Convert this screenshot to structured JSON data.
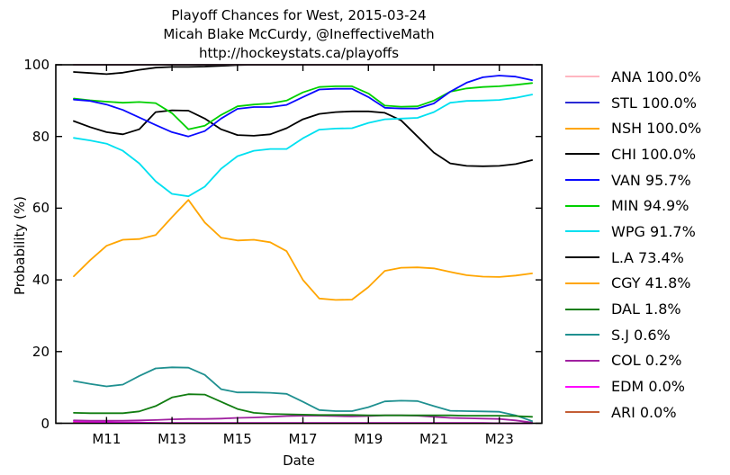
{
  "figure": {
    "title_line1": "Playoff Chances for West, 2015-03-24",
    "title_line2": "Micah Blake McCurdy, @IneffectiveMath",
    "title_line3": "http://hockeystats.ca/playoffs"
  },
  "chart_data": {
    "type": "line",
    "title": "Playoff Chances for West, 2015-03-24",
    "subtitle": "Micah Blake McCurdy, @IneffectiveMath",
    "url_line": "http://hockeystats.ca/playoffs",
    "xlabel": "Date",
    "ylabel": "Probability (%)",
    "xlim": [
      9.45,
      24.3
    ],
    "ylim": [
      0,
      100
    ],
    "grid": false,
    "legend_position": "right-outside",
    "x_ticks": [
      {
        "value": 11,
        "label": "M11"
      },
      {
        "value": 13,
        "label": "M13"
      },
      {
        "value": 15,
        "label": "M15"
      },
      {
        "value": 17,
        "label": "M17"
      },
      {
        "value": 19,
        "label": "M19"
      },
      {
        "value": 21,
        "label": "M21"
      },
      {
        "value": 23,
        "label": "M23"
      }
    ],
    "y_ticks": [
      {
        "value": 0,
        "label": "0"
      },
      {
        "value": 20,
        "label": "20"
      },
      {
        "value": 40,
        "label": "40"
      },
      {
        "value": 60,
        "label": "60"
      },
      {
        "value": 80,
        "label": "80"
      },
      {
        "value": 100,
        "label": "100"
      }
    ],
    "x": [
      10,
      10.5,
      11,
      11.5,
      12,
      12.5,
      13,
      13.5,
      14,
      14.5,
      15,
      15.5,
      16,
      16.5,
      17,
      17.5,
      18,
      18.5,
      19,
      19.5,
      20,
      20.5,
      21,
      21.5,
      22,
      22.5,
      23,
      23.5,
      24
    ],
    "series": [
      {
        "name": "ANA",
        "legend_label": "ANA 100.0%",
        "final": "100.0%",
        "color": "#ffb6c1",
        "values": [
          100,
          100,
          100,
          100,
          100,
          100,
          100,
          100,
          100,
          100,
          100,
          100,
          100,
          100,
          100,
          100,
          100,
          100,
          100,
          100,
          100,
          100,
          100,
          100,
          100,
          100,
          100,
          100,
          100
        ]
      },
      {
        "name": "STL",
        "legend_label": "STL 100.0%",
        "final": "100.0%",
        "color": "#2a2ad4",
        "values": [
          100,
          100,
          100,
          100,
          100,
          100,
          100,
          100,
          100,
          100,
          100,
          100,
          100,
          100,
          100,
          100,
          100,
          100,
          100,
          100,
          100,
          100,
          100,
          100,
          100,
          100,
          100,
          100,
          100
        ]
      },
      {
        "name": "NSH",
        "legend_label": "NSH 100.0%",
        "final": "100.0%",
        "color": "#ffa500",
        "values": [
          100,
          100,
          100,
          100,
          100,
          100,
          100,
          100,
          100,
          100,
          100,
          100,
          100,
          100,
          100,
          100,
          100,
          100,
          100,
          100,
          100,
          100,
          100,
          100,
          100,
          100,
          100,
          100,
          100
        ]
      },
      {
        "name": "CHI",
        "legend_label": "CHI 100.0%",
        "final": "100.0%",
        "color": "#000000",
        "values": [
          98,
          97.7,
          97.4,
          97.8,
          98.6,
          99.2,
          99.4,
          99.4,
          99.5,
          99.7,
          99.9,
          100,
          100,
          100,
          100,
          100,
          100,
          100,
          100,
          100,
          100,
          100,
          100,
          100,
          100,
          100,
          100,
          100,
          100
        ]
      },
      {
        "name": "VAN",
        "legend_label": "VAN 95.7%",
        "final": "95.7%",
        "color": "#0a0aff",
        "values": [
          90.3,
          89.9,
          88.9,
          87.4,
          85.3,
          83.2,
          81.2,
          80,
          81.5,
          85,
          87.7,
          88.2,
          88.2,
          88.8,
          91,
          93.1,
          93.3,
          93.3,
          91,
          88,
          87.8,
          87.8,
          89.2,
          92.5,
          95,
          96.5,
          97,
          96.7,
          95.7
        ]
      },
      {
        "name": "MIN",
        "legend_label": "MIN 94.9%",
        "final": "94.9%",
        "color": "#00d000",
        "values": [
          90.6,
          90.1,
          89.7,
          89.4,
          89.6,
          89.3,
          86.5,
          82,
          83,
          86,
          88.4,
          88.9,
          89.2,
          90,
          92.3,
          93.8,
          94,
          94,
          92,
          88.6,
          88.3,
          88.4,
          90,
          92.5,
          93.4,
          93.8,
          94,
          94.4,
          94.9
        ]
      },
      {
        "name": "WPG",
        "legend_label": "WPG 91.7%",
        "final": "91.7%",
        "color": "#00e0f0",
        "values": [
          79.6,
          78.9,
          78,
          76,
          72.5,
          67.5,
          64,
          63.3,
          66,
          71,
          74.5,
          76,
          76.5,
          76.5,
          79.5,
          81.9,
          82.2,
          82.3,
          83.8,
          84.8,
          85,
          85.2,
          86.8,
          89.4,
          89.9,
          90,
          90.2,
          90.8,
          91.7
        ]
      },
      {
        "name": "L.A",
        "legend_label": "L.A 73.4%",
        "final": "73.4%",
        "color": "#000000",
        "values": [
          84.3,
          82.6,
          81.2,
          80.6,
          82,
          86.8,
          87.3,
          87.2,
          85,
          82,
          80.4,
          80.2,
          80.6,
          82.3,
          84.8,
          86.3,
          86.8,
          87,
          87,
          86.6,
          84.5,
          80,
          75.5,
          72.5,
          71.8,
          71.7,
          71.8,
          72.3,
          73.4
        ]
      },
      {
        "name": "CGY",
        "legend_label": "CGY 41.8%",
        "final": "41.8%",
        "color": "#ffa500",
        "values": [
          41,
          45.5,
          49.5,
          51.2,
          51.4,
          52.5,
          57.5,
          62.3,
          56,
          51.8,
          51,
          51.2,
          50.5,
          48,
          40,
          34.8,
          34.4,
          34.5,
          38,
          42.5,
          43.4,
          43.5,
          43.2,
          42.2,
          41.3,
          40.9,
          40.8,
          41.2,
          41.8
        ]
      },
      {
        "name": "DAL",
        "legend_label": "DAL 1.8%",
        "final": "1.8%",
        "color": "#117d11",
        "values": [
          2.9,
          2.8,
          2.8,
          2.8,
          3.3,
          4.8,
          7.2,
          8.1,
          8,
          6,
          4,
          2.9,
          2.6,
          2.5,
          2.4,
          2.3,
          2.3,
          2.3,
          2.2,
          2.2,
          2.2,
          2.2,
          2.2,
          2.2,
          2.1,
          2.1,
          2.1,
          2,
          1.8
        ]
      },
      {
        "name": "S.J",
        "legend_label": "S.J 0.6%",
        "final": "0.6%",
        "color": "#1f9090",
        "values": [
          11.8,
          11,
          10.3,
          10.8,
          13.2,
          15.3,
          15.6,
          15.5,
          13.5,
          9.5,
          8.6,
          8.6,
          8.5,
          8.2,
          6,
          3.7,
          3.4,
          3.4,
          4.5,
          6.1,
          6.3,
          6.2,
          4.8,
          3.5,
          3.4,
          3.3,
          3.2,
          2.2,
          0.6
        ]
      },
      {
        "name": "COL",
        "legend_label": "COL 0.2%",
        "final": "0.2%",
        "color": "#a020a0",
        "values": [
          0.8,
          0.7,
          0.7,
          0.7,
          0.8,
          0.9,
          1.1,
          1.2,
          1.2,
          1.3,
          1.5,
          1.6,
          1.8,
          2,
          2.1,
          2.1,
          2,
          1.9,
          2,
          2.2,
          2.2,
          2.1,
          1.8,
          1.5,
          1.4,
          1.3,
          1.2,
          0.8,
          0.2
        ]
      },
      {
        "name": "EDM",
        "legend_label": "EDM 0.0%",
        "final": "0.0%",
        "color": "#ff00ff",
        "values": [
          0.5,
          0.4,
          0.3,
          0.2,
          0.2,
          0.1,
          0.1,
          0.1,
          0.1,
          0.1,
          0.1,
          0.1,
          0.1,
          0.1,
          0.1,
          0.1,
          0.1,
          0.1,
          0.1,
          0.1,
          0.1,
          0.1,
          0.1,
          0.1,
          0.1,
          0.1,
          0,
          0,
          0
        ]
      },
      {
        "name": "ARI",
        "legend_label": "ARI 0.0%",
        "final": "0.0%",
        "color": "#c45e35",
        "values": [
          0.2,
          0.2,
          0.1,
          0.1,
          0.1,
          0.1,
          0,
          0,
          0,
          0,
          0,
          0,
          0,
          0,
          0,
          0,
          0,
          0,
          0,
          0,
          0,
          0,
          0,
          0,
          0,
          0,
          0,
          0,
          0
        ]
      }
    ]
  }
}
